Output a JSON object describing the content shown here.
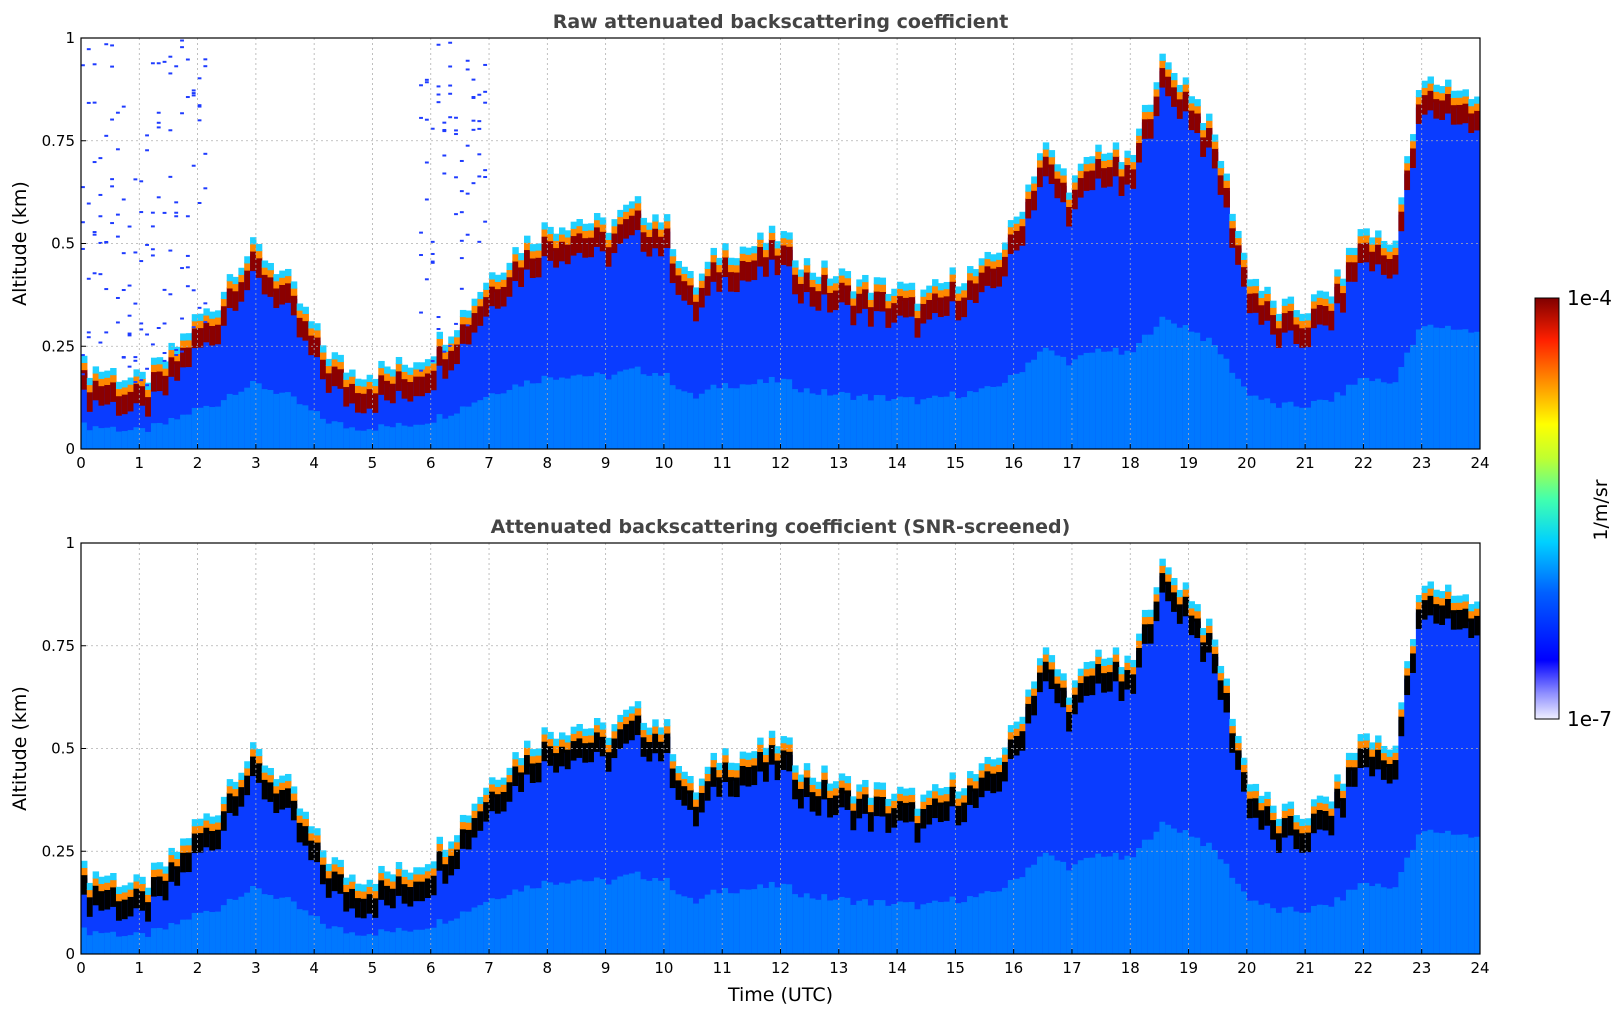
{
  "chart_data": [
    {
      "type": "heatmap",
      "title": "Raw attenuated backscattering coefficient",
      "xlabel": "",
      "ylabel": "Altitude (km)",
      "xlim": [
        0,
        24
      ],
      "ylim": [
        0,
        1
      ],
      "x_ticks": [
        "0",
        "1",
        "2",
        "3",
        "4",
        "5",
        "6",
        "7",
        "8",
        "9",
        "10",
        "11",
        "12",
        "13",
        "14",
        "15",
        "16",
        "17",
        "18",
        "19",
        "20",
        "21",
        "22",
        "23",
        "24"
      ],
      "y_ticks": [
        "0",
        "0.25",
        "0.5",
        "0.75",
        "1"
      ],
      "grid": true,
      "screened": false
    },
    {
      "type": "heatmap",
      "title": "Attenuated backscattering coefficient (SNR-screened)",
      "xlabel": "Time (UTC)",
      "ylabel": "Altitude (km)",
      "xlim": [
        0,
        24
      ],
      "ylim": [
        0,
        1
      ],
      "x_ticks": [
        "0",
        "1",
        "2",
        "3",
        "4",
        "5",
        "6",
        "7",
        "8",
        "9",
        "10",
        "11",
        "12",
        "13",
        "14",
        "15",
        "16",
        "17",
        "18",
        "19",
        "20",
        "21",
        "22",
        "23",
        "24"
      ],
      "y_ticks": [
        "0",
        "0.25",
        "0.5",
        "0.75",
        "1"
      ],
      "grid": true,
      "screened": true
    }
  ],
  "colorbar": {
    "label": "1/m/sr",
    "min_label": "1e-7",
    "max_label": "1e-4",
    "scale": "log",
    "colormap": "jet",
    "placement": "right"
  },
  "layer_profile": {
    "hour": [
      0,
      0.5,
      1,
      1.5,
      2,
      2.3,
      2.6,
      3,
      3.5,
      3.8,
      4.2,
      4.6,
      5,
      5.5,
      6,
      6.5,
      7,
      7.5,
      8,
      8.5,
      9,
      9.5,
      10,
      10.5,
      11,
      11.5,
      12,
      12.5,
      13,
      13.5,
      14,
      14.5,
      15,
      15.5,
      16,
      16.5,
      17,
      17.5,
      18,
      18.5,
      19,
      19.5,
      20,
      20.5,
      21,
      21.5,
      22,
      22.5,
      23,
      23.5,
      24
    ],
    "top_km": [
      0.16,
      0.15,
      0.12,
      0.18,
      0.28,
      0.3,
      0.4,
      0.45,
      0.38,
      0.3,
      0.2,
      0.15,
      0.15,
      0.16,
      0.2,
      0.28,
      0.38,
      0.45,
      0.5,
      0.52,
      0.5,
      0.55,
      0.52,
      0.35,
      0.45,
      0.45,
      0.48,
      0.4,
      0.38,
      0.36,
      0.35,
      0.33,
      0.38,
      0.4,
      0.5,
      0.7,
      0.6,
      0.7,
      0.65,
      0.9,
      0.85,
      0.7,
      0.4,
      0.3,
      0.3,
      0.35,
      0.5,
      0.45,
      0.85,
      0.85,
      0.8
    ],
    "colors": {
      "layer": "#8b0000",
      "screen_black": "#000000",
      "noise": "#1f3cff"
    }
  }
}
